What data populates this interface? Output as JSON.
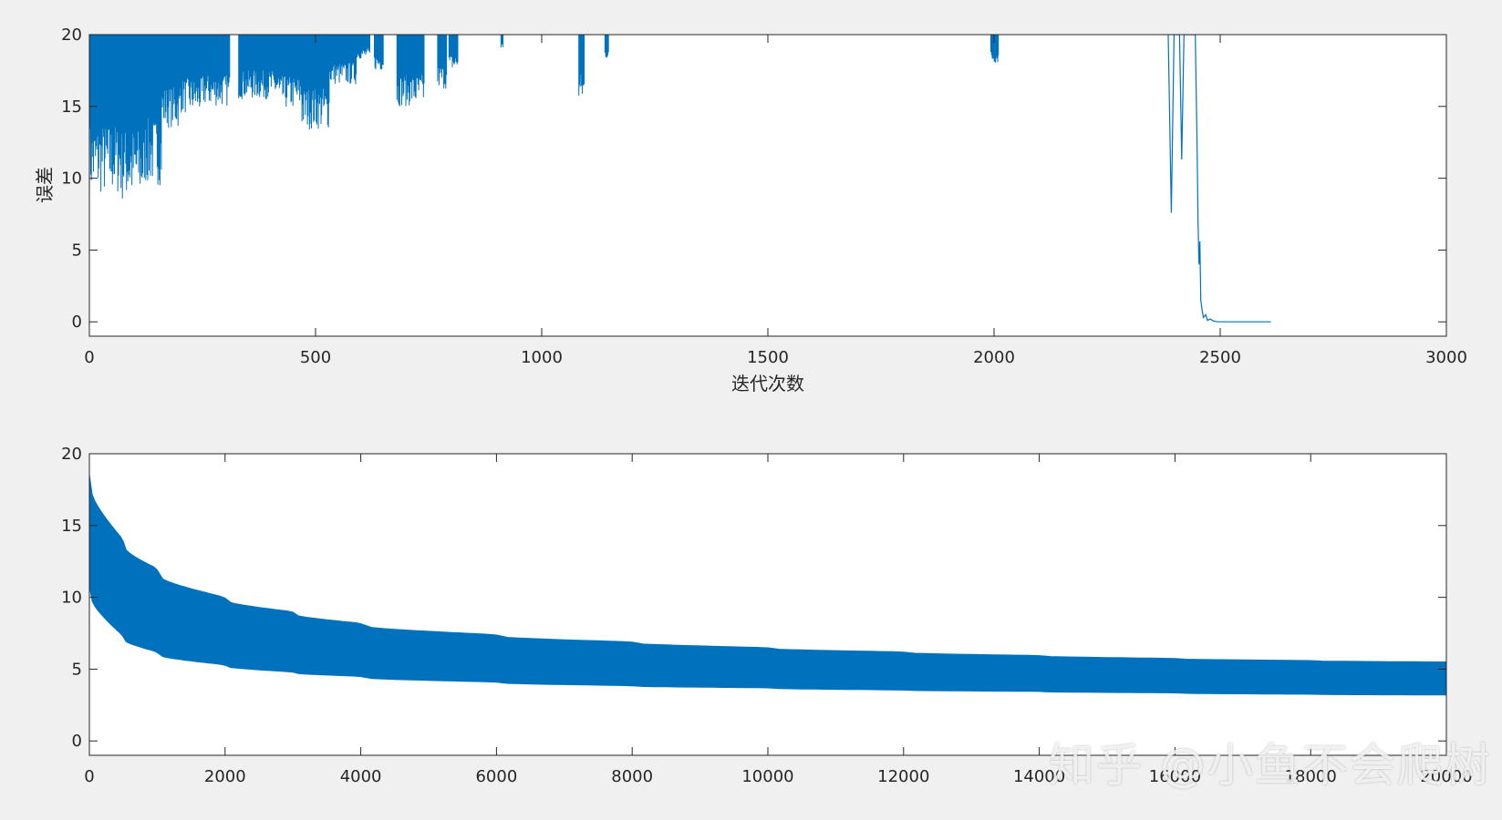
{
  "chart_data": [
    {
      "type": "line",
      "xlabel": "迭代次数",
      "ylabel": "误差",
      "xlim": [
        0,
        3000
      ],
      "ylim": [
        -1,
        20
      ],
      "xticks": [
        0,
        500,
        1000,
        1500,
        2000,
        2500,
        3000
      ],
      "yticks": [
        0,
        5,
        10,
        15,
        20
      ],
      "grid": false,
      "series_color": "#0072BD",
      "noisy_segments": [
        {
          "x0": 0,
          "x1": 70,
          "min": 8.8,
          "max": 20
        },
        {
          "x0": 70,
          "x1": 120,
          "min": 8.3,
          "max": 20
        },
        {
          "x0": 120,
          "x1": 160,
          "min": 9.5,
          "max": 20
        },
        {
          "x0": 160,
          "x1": 200,
          "min": 13.5,
          "max": 20
        },
        {
          "x0": 200,
          "x1": 250,
          "min": 14.5,
          "max": 20
        },
        {
          "x0": 250,
          "x1": 310,
          "min": 15,
          "max": 20
        },
        {
          "x0": 330,
          "x1": 420,
          "min": 15.5,
          "max": 20
        },
        {
          "x0": 420,
          "x1": 470,
          "min": 14.8,
          "max": 20
        },
        {
          "x0": 470,
          "x1": 530,
          "min": 13.4,
          "max": 20
        },
        {
          "x0": 530,
          "x1": 590,
          "min": 16.5,
          "max": 20
        },
        {
          "x0": 590,
          "x1": 620,
          "min": 18.3,
          "max": 20
        },
        {
          "x0": 630,
          "x1": 650,
          "min": 17.5,
          "max": 20
        },
        {
          "x0": 680,
          "x1": 740,
          "min": 15,
          "max": 20
        },
        {
          "x0": 770,
          "x1": 790,
          "min": 16.2,
          "max": 20
        },
        {
          "x0": 795,
          "x1": 815,
          "min": 17.5,
          "max": 20
        },
        {
          "x0": 910,
          "x1": 915,
          "min": 19,
          "max": 20
        },
        {
          "x0": 1082,
          "x1": 1095,
          "min": 15.2,
          "max": 20
        },
        {
          "x0": 1140,
          "x1": 1148,
          "min": 18.3,
          "max": 20
        },
        {
          "x0": 1993,
          "x1": 2010,
          "min": 18,
          "max": 20
        }
      ],
      "converge": [
        [
          2385,
          20
        ],
        [
          2392,
          7.6
        ],
        [
          2398,
          20
        ],
        [
          2410,
          20
        ],
        [
          2415,
          11.3
        ],
        [
          2420,
          20
        ],
        [
          2440,
          20
        ],
        [
          2445,
          20
        ],
        [
          2449,
          12
        ],
        [
          2451,
          7
        ],
        [
          2453,
          4
        ],
        [
          2455,
          5.6
        ],
        [
          2457,
          1.5
        ],
        [
          2460,
          0.8
        ],
        [
          2463,
          0.3
        ],
        [
          2468,
          0.5
        ],
        [
          2472,
          0.1
        ],
        [
          2478,
          0.2
        ],
        [
          2485,
          0.05
        ],
        [
          2495,
          0.0
        ],
        [
          2520,
          0.0
        ],
        [
          2612,
          0.0
        ]
      ]
    },
    {
      "type": "area",
      "xlim": [
        0,
        20000
      ],
      "ylim": [
        -1,
        20
      ],
      "xticks": [
        0,
        2000,
        4000,
        6000,
        8000,
        10000,
        12000,
        14000,
        16000,
        18000,
        20000
      ],
      "yticks": [
        0,
        5,
        10,
        15,
        20
      ],
      "grid": false,
      "series_color": "#0072BD",
      "upper": [
        [
          0,
          18.8
        ],
        [
          500,
          14
        ],
        [
          1000,
          12
        ],
        [
          2000,
          10
        ],
        [
          3000,
          9
        ],
        [
          4000,
          8.2
        ],
        [
          6000,
          7.4
        ],
        [
          8000,
          6.9
        ],
        [
          10000,
          6.5
        ],
        [
          12000,
          6.2
        ],
        [
          14000,
          5.95
        ],
        [
          16000,
          5.75
        ],
        [
          18000,
          5.6
        ],
        [
          20000,
          5.5
        ]
      ],
      "lower": [
        [
          0,
          11
        ],
        [
          500,
          7.3
        ],
        [
          1000,
          6.2
        ],
        [
          2000,
          5.3
        ],
        [
          3000,
          4.8
        ],
        [
          4000,
          4.5
        ],
        [
          6000,
          4.1
        ],
        [
          8000,
          3.85
        ],
        [
          10000,
          3.7
        ],
        [
          12000,
          3.55
        ],
        [
          14000,
          3.45
        ],
        [
          16000,
          3.35
        ],
        [
          18000,
          3.25
        ],
        [
          20000,
          3.2
        ]
      ]
    }
  ],
  "watermark": "知乎 @小鱼不会爬树"
}
